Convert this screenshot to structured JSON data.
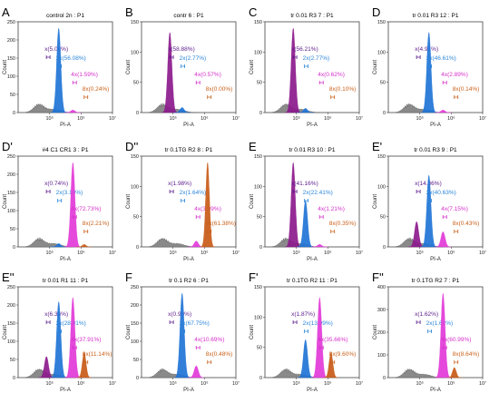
{
  "colors": {
    "x": "#8c1a8c",
    "2x": "#1f74d6",
    "4x": "#e23ad8",
    "8x": "#c85a17",
    "debris": "#8a8a8a",
    "x_label": "#5a1a8a",
    "2x_label": "#2b86d9",
    "4x_label": "#d42fc9",
    "8x_label": "#c8601a"
  },
  "chart_data": [
    {
      "id": "A",
      "type": "area",
      "letter": "A",
      "title": "control 2n : P1",
      "xlabel": "PI-A",
      "ylabel": "Count",
      "xscale": "log",
      "xlim": [
        10000,
        10000000
      ],
      "ylim": [
        0,
        250
      ],
      "x_ticks": [
        "10⁵",
        "10⁶",
        "10⁷"
      ],
      "y_ticks": [
        "0",
        "50",
        "100",
        "150",
        "200",
        "250"
      ],
      "gates": [
        {
          "name": "x",
          "label": "x(5.08%)",
          "peak": 0.0
        },
        {
          "name": "2x",
          "label": "2x(56.08%)",
          "peak": 1.0
        },
        {
          "name": "4x",
          "label": "4x(1.59%)",
          "peak": 0.03
        },
        {
          "name": "8x",
          "label": "8x(0.24%)",
          "peak": 0.0
        }
      ]
    },
    {
      "id": "B",
      "type": "area",
      "letter": "B",
      "title": "contr 6 : P1",
      "xlabel": "PI-A",
      "ylabel": "Count",
      "xscale": "log",
      "xlim": [
        10000,
        10000000
      ],
      "ylim": [
        0,
        150
      ],
      "x_ticks": [
        "10⁵",
        "10⁶",
        "10⁷"
      ],
      "y_ticks": [
        "0",
        "50",
        "100",
        "150"
      ],
      "gates": [
        {
          "name": "x",
          "label": "x(58.88%)",
          "peak": 0.95
        },
        {
          "name": "2x",
          "label": "2x(2.77%)",
          "peak": 0.06
        },
        {
          "name": "4x",
          "label": "4x(0.57%)",
          "peak": 0.0
        },
        {
          "name": "8x",
          "label": "8x(0.00%)",
          "peak": 0.0
        }
      ]
    },
    {
      "id": "C",
      "type": "area",
      "letter": "C",
      "title": "tr 0.01 R3 7 : P1",
      "xlabel": "PI-A",
      "ylabel": "Count",
      "xscale": "log",
      "xlim": [
        10000,
        10000000
      ],
      "ylim": [
        0,
        150
      ],
      "x_ticks": [
        "10⁵",
        "10⁶",
        "10⁷"
      ],
      "y_ticks": [
        "0",
        "50",
        "100",
        "150"
      ],
      "gates": [
        {
          "name": "x",
          "label": "x(56.21%)",
          "peak": 1.0
        },
        {
          "name": "2x",
          "label": "2x(2.77%)",
          "peak": 0.05
        },
        {
          "name": "4x",
          "label": "4x(0.62%)",
          "peak": 0.0
        },
        {
          "name": "8x",
          "label": "8x(0.10%)",
          "peak": 0.0
        }
      ]
    },
    {
      "id": "D",
      "type": "area",
      "letter": "D",
      "title": "tr 0.01 R3 12 : P1",
      "xlabel": "PI-A",
      "ylabel": "Count",
      "xscale": "log",
      "xlim": [
        10000,
        10000000
      ],
      "ylim": [
        0,
        150
      ],
      "x_ticks": [
        "10⁵",
        "10⁶",
        "10⁷"
      ],
      "y_ticks": [
        "0",
        "50",
        "100",
        "150"
      ],
      "gates": [
        {
          "name": "x",
          "label": "x(4.91%)",
          "peak": 0.0
        },
        {
          "name": "2x",
          "label": "2x(46.61%)",
          "peak": 0.95
        },
        {
          "name": "4x",
          "label": "4x(2.89%)",
          "peak": 0.03
        },
        {
          "name": "8x",
          "label": "8x(0.14%)",
          "peak": 0.0
        }
      ]
    },
    {
      "id": "D1",
      "type": "area",
      "letter": "D'",
      "title": "#4 C1 CR1 3 : P1",
      "xlabel": "PI-A",
      "ylabel": "Count",
      "xscale": "log",
      "xlim": [
        10000,
        10000000
      ],
      "ylim": [
        0,
        250
      ],
      "x_ticks": [
        "10⁵",
        "10⁶",
        "10⁷"
      ],
      "y_ticks": [
        "0",
        "50",
        "100",
        "150",
        "200",
        "250"
      ],
      "gates": [
        {
          "name": "x",
          "label": "x(0.74%)",
          "peak": 0.0
        },
        {
          "name": "2x",
          "label": "2x(3.19%)",
          "peak": 0.04
        },
        {
          "name": "4x",
          "label": "4x(72.73%)",
          "peak": 1.0
        },
        {
          "name": "8x",
          "label": "8x(2.21%)",
          "peak": 0.03
        }
      ]
    },
    {
      "id": "D2",
      "type": "area",
      "letter": "D''",
      "title": "tr 0.1TG R2 8 : P1",
      "xlabel": "PI-A",
      "ylabel": "Count",
      "xscale": "log",
      "xlim": [
        10000,
        10000000
      ],
      "ylim": [
        0,
        150
      ],
      "x_ticks": [
        "10⁵",
        "10⁶",
        "10⁷"
      ],
      "y_ticks": [
        "0",
        "50",
        "100",
        "150"
      ],
      "gates": [
        {
          "name": "x",
          "label": "x(1.98%)",
          "peak": 0.0
        },
        {
          "name": "2x",
          "label": "2x(1.64%)",
          "peak": 0.0
        },
        {
          "name": "4x",
          "label": "4x(3.99%)",
          "peak": 0.07
        },
        {
          "name": "8x",
          "label": "8x(61.38%)",
          "peak": 1.0
        }
      ]
    },
    {
      "id": "E",
      "type": "area",
      "letter": "E",
      "title": "tr 0.01 R3 10 : P1",
      "xlabel": "PI-A",
      "ylabel": "Count",
      "xscale": "log",
      "xlim": [
        10000,
        10000000
      ],
      "ylim": [
        0,
        150
      ],
      "x_ticks": [
        "10⁵",
        "10⁶",
        "10⁷"
      ],
      "y_ticks": [
        "0",
        "50",
        "100",
        "150"
      ],
      "gates": [
        {
          "name": "x",
          "label": "x(41.16%)",
          "peak": 1.0
        },
        {
          "name": "2x",
          "label": "2x(22.41%)",
          "peak": 0.55
        },
        {
          "name": "4x",
          "label": "4x(1.21%)",
          "peak": 0.03
        },
        {
          "name": "8x",
          "label": "8x(0.35%)",
          "peak": 0.0
        }
      ]
    },
    {
      "id": "E1",
      "type": "area",
      "letter": "E'",
      "title": "tr 0.01 R3 9 : P1",
      "xlabel": "PI-A",
      "ylabel": "Count",
      "xscale": "log",
      "xlim": [
        10000,
        10000000
      ],
      "ylim": [
        0,
        150
      ],
      "x_ticks": [
        "10⁵",
        "10⁶",
        "10⁷"
      ],
      "y_ticks": [
        "0",
        "50",
        "100",
        "150"
      ],
      "gates": [
        {
          "name": "x",
          "label": "x(14.36%)",
          "peak": 0.3
        },
        {
          "name": "2x",
          "label": "2x(40.63%)",
          "peak": 0.85
        },
        {
          "name": "4x",
          "label": "4x(7.15%)",
          "peak": 0.18
        },
        {
          "name": "8x",
          "label": "8x(0.43%)",
          "peak": 0.0
        }
      ]
    },
    {
      "id": "E2",
      "type": "area",
      "letter": "E''",
      "title": "tr 0.01 R1 11 : P1",
      "xlabel": "PI-A",
      "ylabel": "Count",
      "xscale": "log",
      "xlim": [
        10000,
        10000000
      ],
      "ylim": [
        0,
        250
      ],
      "x_ticks": [
        "10⁵",
        "10⁶",
        "10⁷"
      ],
      "y_ticks": [
        "0",
        "50",
        "100",
        "150",
        "200",
        "250"
      ],
      "gates": [
        {
          "name": "x",
          "label": "x(6.36%)",
          "peak": 0.25
        },
        {
          "name": "2x",
          "label": "2x(28.91%)",
          "peak": 0.9
        },
        {
          "name": "4x",
          "label": "4x(37.91%)",
          "peak": 0.95
        },
        {
          "name": "8x",
          "label": "8x(11.14%)",
          "peak": 0.3
        }
      ]
    },
    {
      "id": "F",
      "type": "area",
      "letter": "F",
      "title": "tr 0.1 R2 6 : P1",
      "xlabel": "PI-A",
      "ylabel": "Count",
      "xscale": "log",
      "xlim": [
        10000,
        10000000
      ],
      "ylim": [
        0,
        250
      ],
      "x_ticks": [
        "10⁵",
        "10⁶",
        "10⁷"
      ],
      "y_ticks": [
        "0",
        "50",
        "100",
        "150",
        "200",
        "250"
      ],
      "gates": [
        {
          "name": "x",
          "label": "x(0.90%)",
          "peak": 0.0
        },
        {
          "name": "2x",
          "label": "2x(67.75%)",
          "peak": 1.0
        },
        {
          "name": "4x",
          "label": "4x(10.69%)",
          "peak": 0.14
        },
        {
          "name": "8x",
          "label": "8x(0.48%)",
          "peak": 0.0
        }
      ]
    },
    {
      "id": "F1",
      "type": "area",
      "letter": "F'",
      "title": "tr 0.1TG R2 11 : P1",
      "xlabel": "PI-A",
      "ylabel": "Count",
      "xscale": "log",
      "xlim": [
        10000,
        10000000
      ],
      "ylim": [
        0,
        150
      ],
      "x_ticks": [
        "10⁵",
        "10⁶",
        "10⁷"
      ],
      "y_ticks": [
        "0",
        "50",
        "100",
        "150"
      ],
      "gates": [
        {
          "name": "x",
          "label": "x(1.87%)",
          "peak": 0.0
        },
        {
          "name": "2x",
          "label": "2x(13.99%)",
          "peak": 0.45
        },
        {
          "name": "4x",
          "label": "4x(35.66%)",
          "peak": 0.95
        },
        {
          "name": "8x",
          "label": "8x(9.60%)",
          "peak": 0.3
        }
      ]
    },
    {
      "id": "F2",
      "type": "area",
      "letter": "F''",
      "title": "tr 0.1TG R2 7 : P1",
      "xlabel": "PI-A",
      "ylabel": "Count",
      "xscale": "log",
      "xlim": [
        10000,
        10000000
      ],
      "ylim": [
        0,
        400
      ],
      "x_ticks": [
        "10⁵",
        "10⁶",
        "10⁷"
      ],
      "y_ticks": [
        "0",
        "100",
        "200",
        "300",
        "400"
      ],
      "gates": [
        {
          "name": "x",
          "label": "x(1.62%)",
          "peak": 0.0
        },
        {
          "name": "2x",
          "label": "2x(1.62%)",
          "peak": 0.0
        },
        {
          "name": "4x",
          "label": "4x(60.99%)",
          "peak": 1.0
        },
        {
          "name": "8x",
          "label": "8x(8.64%)",
          "peak": 0.12
        }
      ]
    }
  ]
}
